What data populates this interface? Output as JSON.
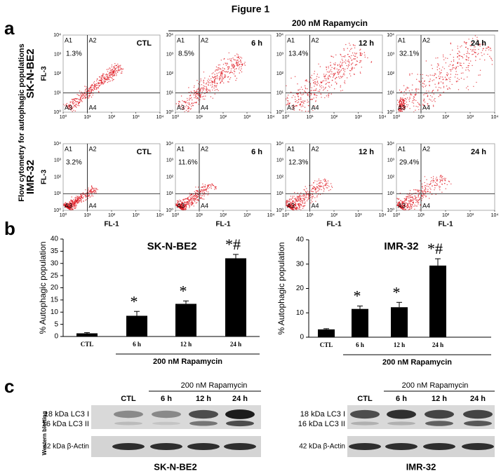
{
  "title": "Figure 1",
  "panel_a": {
    "letter": "a",
    "treatment": "200 nM Rapamycin",
    "ylabel": "Flow cytometry for autophagic populations",
    "xlabel": "FL-1",
    "plot_ylabel": "FL-3",
    "quadrants": [
      "A1",
      "A2",
      "A3",
      "A4"
    ],
    "ticks": [
      {
        "value": 1,
        "label": "10⁰"
      },
      {
        "value": 10,
        "label": "10¹"
      },
      {
        "value": 100,
        "label": "10²"
      },
      {
        "value": 1000,
        "label": "10³"
      },
      {
        "value": 10000,
        "label": "10⁴"
      }
    ],
    "rows": [
      {
        "name": "SK-N-BE2",
        "plots": [
          {
            "condition": "CTL",
            "percent": "1.3%"
          },
          {
            "condition": "6 h",
            "percent": "8.5%"
          },
          {
            "condition": "12 h",
            "percent": "13.4%"
          },
          {
            "condition": "24 h",
            "percent": "32.1%"
          }
        ]
      },
      {
        "name": "IMR-32",
        "plots": [
          {
            "condition": "CTL",
            "percent": "3.2%"
          },
          {
            "condition": "6 h",
            "percent": "11.6%"
          },
          {
            "condition": "12 h",
            "percent": "12.3%"
          },
          {
            "condition": "24 h",
            "percent": "29.4%"
          }
        ]
      }
    ]
  },
  "panel_b": {
    "letter": "b"
  },
  "chart_data": [
    {
      "type": "bar",
      "title": "SK-N-BE2",
      "ylabel": "% Autophagic population",
      "categories": [
        "CTL",
        "6 h",
        "12 h",
        "24 h"
      ],
      "values": [
        1.3,
        8.5,
        13.4,
        32.1
      ],
      "errors": [
        0.3,
        1.8,
        1.2,
        1.6
      ],
      "bar_labels": [
        null,
        "*",
        "*",
        "*#"
      ],
      "group_label": "200 nM Rapamycin",
      "color": "#000000",
      "ylim": [
        0,
        40
      ],
      "yticks": [
        0,
        5,
        10,
        15,
        20,
        25,
        30,
        35,
        40
      ]
    },
    {
      "type": "bar",
      "title": "IMR-32",
      "ylabel": "% Autophagic population",
      "categories": [
        "CTL",
        "6 h",
        "12 h",
        "24 h"
      ],
      "values": [
        3.2,
        11.6,
        12.3,
        29.4
      ],
      "errors": [
        0.3,
        1.2,
        2,
        2.8
      ],
      "bar_labels": [
        null,
        "*",
        "*",
        "*#"
      ],
      "group_label": "200 nM Rapamycin",
      "color": "#000000",
      "ylim": [
        0,
        40
      ],
      "yticks": [
        0,
        10,
        20,
        30,
        40
      ]
    }
  ],
  "panel_c": {
    "letter": "c",
    "blots": [
      {
        "name": "SK-N-BE2",
        "treatment": "200 nM Rapamycin",
        "lanes": [
          "CTL",
          "6 h",
          "12 h",
          "24 h"
        ],
        "bands": [
          "18 kDa LC3 I",
          "16 kDa LC3 II",
          "42 kDa β-Actin"
        ],
        "side_label": "Western blotting"
      },
      {
        "name": "IMR-32",
        "treatment": "200 nM Rapamycin",
        "lanes": [
          "CTL",
          "6 h",
          "12 h",
          "24 h"
        ],
        "bands": [
          "18 kDa LC3 I",
          "16 kDa LC3 II",
          "42 kDa β-Actin"
        ]
      }
    ]
  }
}
